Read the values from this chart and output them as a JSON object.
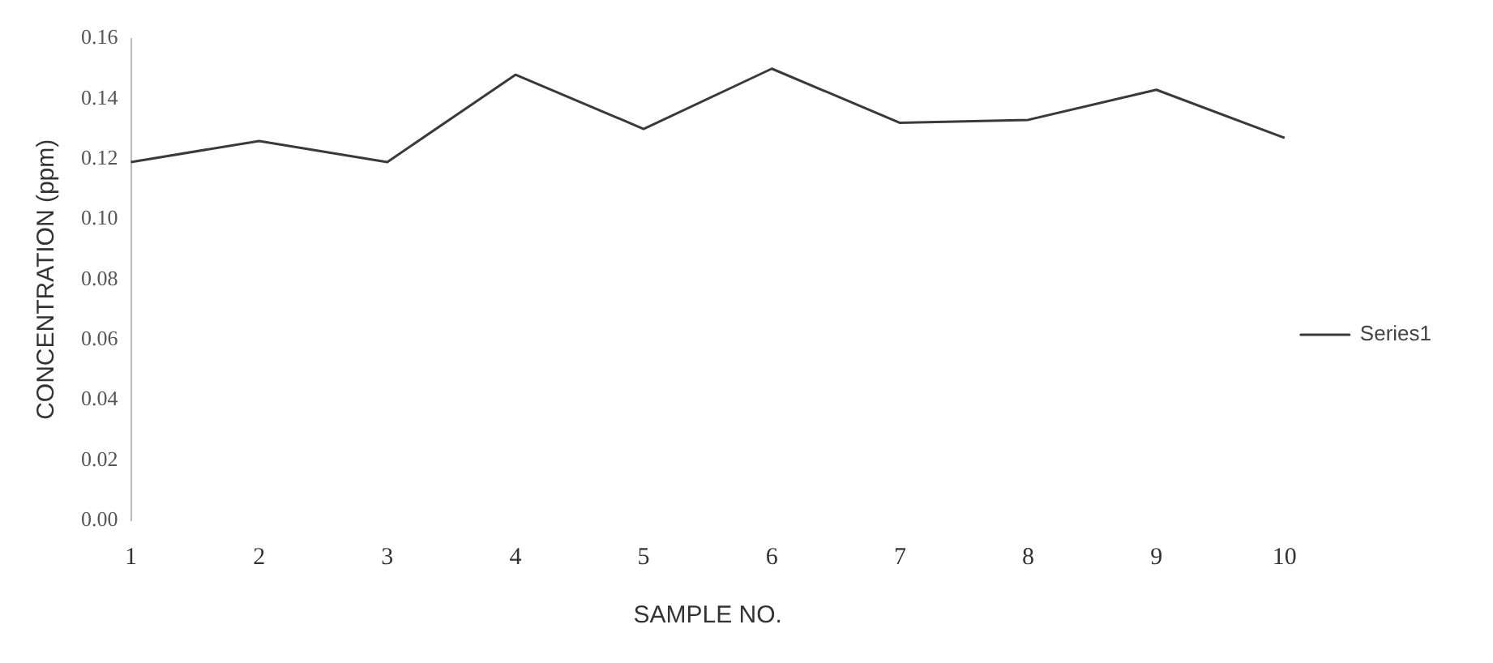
{
  "chart_data": {
    "type": "line",
    "xlabel": "SAMPLE NO.",
    "ylabel": "CONCENTRATION (ppm)",
    "categories": [
      "1",
      "2",
      "3",
      "4",
      "5",
      "6",
      "7",
      "8",
      "9",
      "10"
    ],
    "series": [
      {
        "name": "Series1",
        "color": "#3a3a3a",
        "values": [
          0.119,
          0.126,
          0.119,
          0.148,
          0.13,
          0.15,
          0.132,
          0.133,
          0.143,
          0.127
        ]
      }
    ],
    "ylim": [
      0,
      0.16
    ],
    "yticks": [
      {
        "value": 0,
        "label": "0.00"
      },
      {
        "value": 0.02,
        "label": "0.02"
      },
      {
        "value": 0.04,
        "label": "0.04"
      },
      {
        "value": 0.06,
        "label": "0.06"
      },
      {
        "value": 0.08,
        "label": "0.08"
      },
      {
        "value": 0.1,
        "label": "0.10"
      },
      {
        "value": 0.12,
        "label": "0.12"
      },
      {
        "value": 0.14,
        "label": "0.14"
      },
      {
        "value": 0.16,
        "label": "0.16"
      }
    ],
    "grid": false,
    "legend": "right",
    "marker": "none"
  }
}
